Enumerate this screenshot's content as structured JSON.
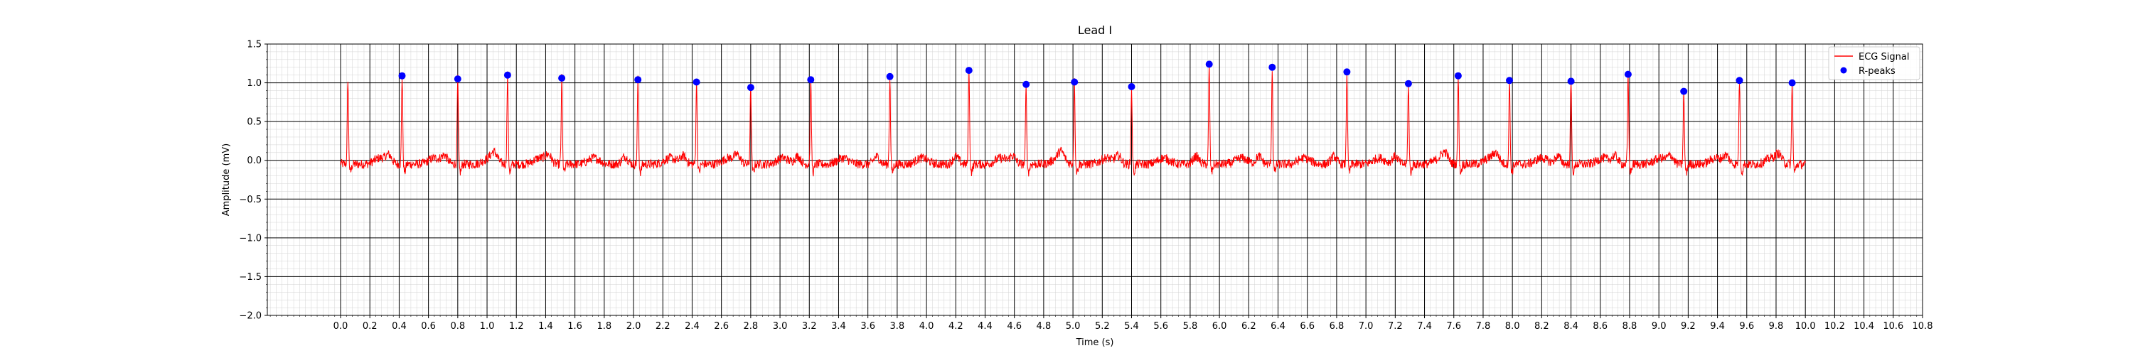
{
  "chart_data": {
    "type": "line",
    "title": "Lead I",
    "xlabel": "Time (s)",
    "ylabel": "Amplitude (mV)",
    "xlim": [
      -0.5,
      10.8
    ],
    "ylim": [
      -2.0,
      1.5
    ],
    "xticks": [
      0.0,
      0.2,
      0.4,
      0.6,
      0.8,
      1.0,
      1.2,
      1.4,
      1.6,
      1.8,
      2.0,
      2.2,
      2.4,
      2.6,
      2.8,
      3.0,
      3.2,
      3.4,
      3.6,
      3.8,
      4.0,
      4.2,
      4.4,
      4.6,
      4.8,
      5.0,
      5.2,
      5.4,
      5.6,
      5.8,
      6.0,
      6.2,
      6.4,
      6.6,
      6.8,
      7.0,
      7.2,
      7.4,
      7.6,
      7.8,
      8.0,
      8.2,
      8.4,
      8.6,
      8.8,
      9.0,
      9.2,
      9.4,
      9.6,
      9.8,
      10.0,
      10.2,
      10.4,
      10.6,
      10.8
    ],
    "xtick_labels": [
      "0.0",
      "0.2",
      "0.4",
      "0.6",
      "0.8",
      "1.0",
      "1.2",
      "1.4",
      "1.6",
      "1.8",
      "2.0",
      "2.2",
      "2.4",
      "2.6",
      "2.8",
      "3.0",
      "3.2",
      "3.4",
      "3.6",
      "3.8",
      "4.0",
      "4.2",
      "4.4",
      "4.6",
      "4.8",
      "5.0",
      "5.2",
      "5.4",
      "5.6",
      "5.8",
      "6.0",
      "6.2",
      "6.4",
      "6.6",
      "6.8",
      "7.0",
      "7.2",
      "7.4",
      "7.6",
      "7.8",
      "8.0",
      "8.2",
      "8.4",
      "8.6",
      "8.8",
      "9.0",
      "9.2",
      "9.4",
      "9.6",
      "9.8",
      "10.0",
      "10.2",
      "10.4",
      "10.6",
      "10.8"
    ],
    "yticks": [
      -2.0,
      -1.5,
      -1.0,
      -0.5,
      0.0,
      0.5,
      1.0,
      1.5
    ],
    "ytick_labels": [
      "−2.0",
      "−1.5",
      "−1.0",
      "−0.5",
      "0.0",
      "0.5",
      "1.0",
      "1.5"
    ],
    "grid": {
      "major_x_step": 0.2,
      "major_y_step": 0.5,
      "minor": true
    },
    "legend_position": "top-right",
    "series": [
      {
        "name": "ECG Signal",
        "kind": "line",
        "color": "#ff0000",
        "x_start": 0.0,
        "x_end": 10.0,
        "baseline": -0.05,
        "noise_amplitude": 0.06,
        "unlabeled_peaks": [
          {
            "x": 0.05,
            "y": 1.06
          }
        ]
      },
      {
        "name": "R-peaks",
        "kind": "scatter",
        "color": "#0000ff",
        "points": [
          {
            "x": 0.42,
            "y": 1.09
          },
          {
            "x": 0.8,
            "y": 1.05
          },
          {
            "x": 1.14,
            "y": 1.1
          },
          {
            "x": 1.51,
            "y": 1.06
          },
          {
            "x": 2.03,
            "y": 1.04
          },
          {
            "x": 2.43,
            "y": 1.01
          },
          {
            "x": 2.8,
            "y": 0.94
          },
          {
            "x": 3.21,
            "y": 1.04
          },
          {
            "x": 3.75,
            "y": 1.08
          },
          {
            "x": 4.29,
            "y": 1.16
          },
          {
            "x": 4.68,
            "y": 0.98
          },
          {
            "x": 5.01,
            "y": 1.01
          },
          {
            "x": 5.4,
            "y": 0.95
          },
          {
            "x": 5.93,
            "y": 1.24
          },
          {
            "x": 6.36,
            "y": 1.2
          },
          {
            "x": 6.87,
            "y": 1.14
          },
          {
            "x": 7.29,
            "y": 0.99
          },
          {
            "x": 7.63,
            "y": 1.09
          },
          {
            "x": 7.98,
            "y": 1.03
          },
          {
            "x": 8.4,
            "y": 1.02
          },
          {
            "x": 8.79,
            "y": 1.11
          },
          {
            "x": 9.17,
            "y": 0.89
          },
          {
            "x": 9.55,
            "y": 1.03
          },
          {
            "x": 9.91,
            "y": 1.0
          }
        ]
      }
    ]
  }
}
